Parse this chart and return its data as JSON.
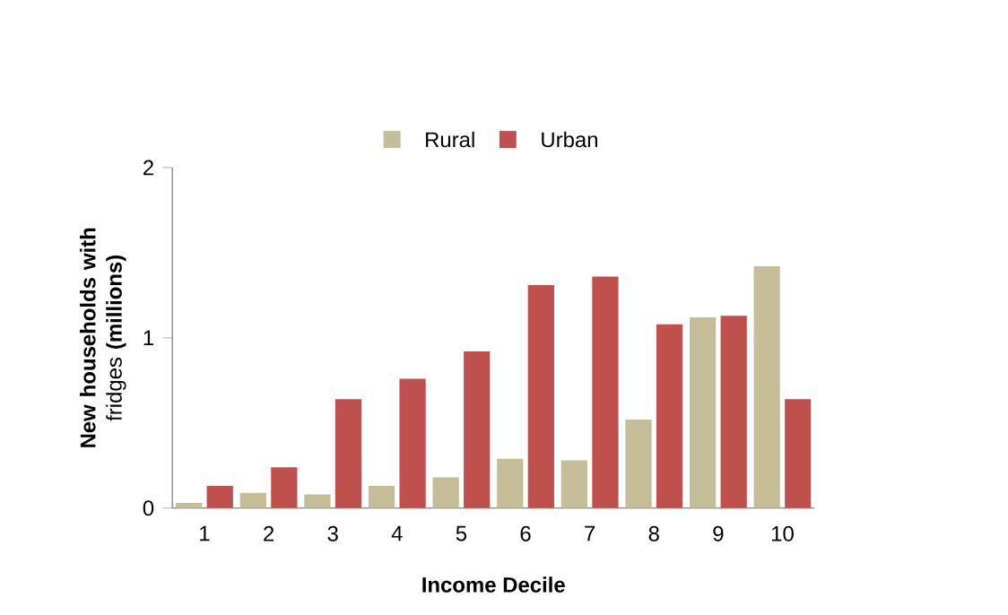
{
  "chart_data": {
    "type": "bar",
    "xlabel": "Income Decile",
    "ylabel": "**New households with** fridges **(millions)**",
    "categories": [
      "1",
      "2",
      "3",
      "4",
      "5",
      "6",
      "7",
      "8",
      "9",
      "10"
    ],
    "series": [
      {
        "name": "Rural",
        "color": "#c4bd97",
        "values": [
          0.03,
          0.09,
          0.08,
          0.13,
          0.18,
          0.29,
          0.28,
          0.52,
          1.12,
          1.42
        ]
      },
      {
        "name": "Urban",
        "color": "#c0504d",
        "values": [
          0.13,
          0.24,
          0.64,
          0.76,
          0.92,
          1.31,
          1.36,
          1.08,
          1.13,
          0.64
        ]
      }
    ],
    "ylim": [
      0,
      2
    ],
    "yticks": [
      0,
      1,
      2
    ],
    "legend": "top",
    "grid": false
  }
}
